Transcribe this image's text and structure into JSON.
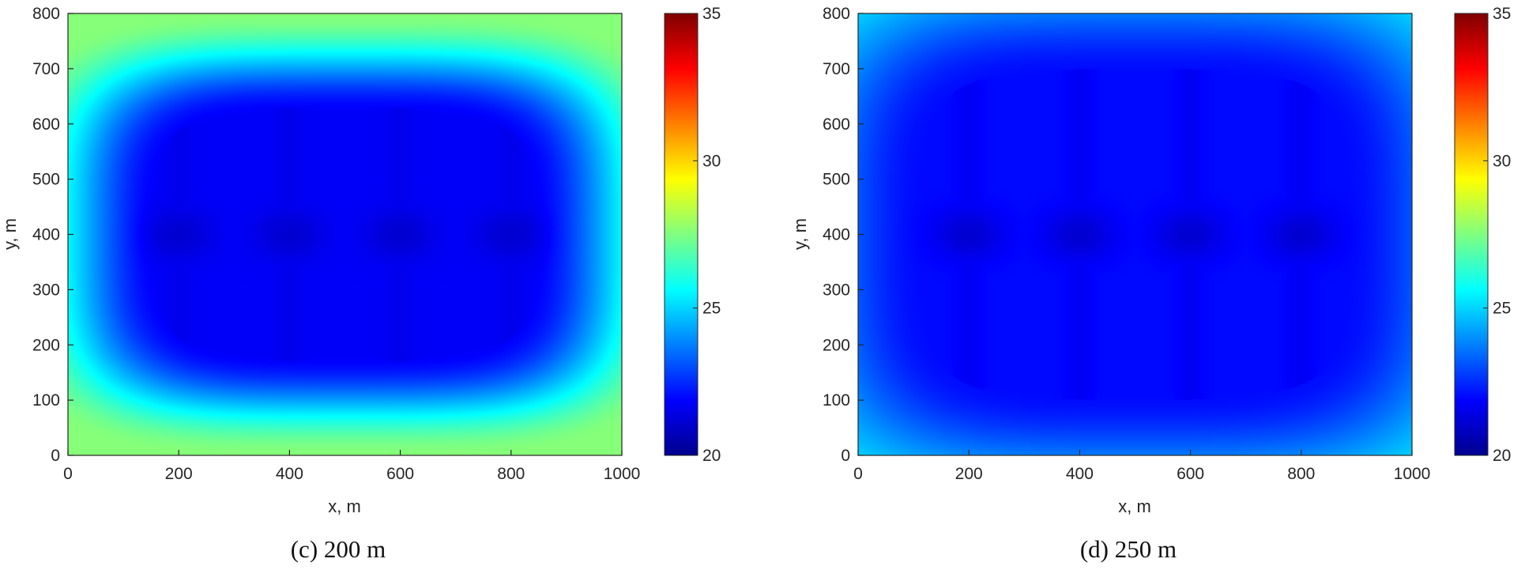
{
  "chart_data": [
    {
      "type": "heatmap",
      "caption": "(c) 200 m",
      "xlabel": "x, m",
      "ylabel": "y, m",
      "xlim": [
        0,
        1000
      ],
      "ylim": [
        0,
        800
      ],
      "xticks": [
        "0",
        "200",
        "400",
        "600",
        "800",
        "1000"
      ],
      "yticks": [
        "0",
        "100",
        "200",
        "300",
        "400",
        "500",
        "600",
        "700",
        "800"
      ],
      "colorbar": {
        "min": 20,
        "max": 35,
        "ticks": [
          "20",
          "25",
          "30",
          "35"
        ],
        "colormap": "jet"
      },
      "anchor_points": [
        [
          200,
          400
        ],
        [
          400,
          400
        ],
        [
          600,
          400
        ],
        [
          800,
          400
        ]
      ],
      "value_range": [
        21.2,
        27.6
      ],
      "corner_value": 27.6,
      "plateau_value": 21.8,
      "plateau_extent": {
        "x": [
          150,
          850
        ],
        "y": [
          170,
          630
        ]
      }
    },
    {
      "type": "heatmap",
      "caption": "(d) 250 m",
      "xlabel": "x, m",
      "ylabel": "y, m",
      "xlim": [
        0,
        1000
      ],
      "ylim": [
        0,
        800
      ],
      "xticks": [
        "0",
        "200",
        "400",
        "600",
        "800",
        "1000"
      ],
      "yticks": [
        "0",
        "100",
        "200",
        "300",
        "400",
        "500",
        "600",
        "700",
        "800"
      ],
      "colorbar": {
        "min": 20,
        "max": 35,
        "ticks": [
          "20",
          "25",
          "30",
          "35"
        ],
        "colormap": "jet"
      },
      "anchor_points": [
        [
          200,
          400
        ],
        [
          400,
          400
        ],
        [
          600,
          400
        ],
        [
          800,
          400
        ]
      ],
      "value_range": [
        21.2,
        25.5
      ],
      "corner_value": 25.5,
      "plateau_value": 22.0,
      "plateau_extent": {
        "x": [
          100,
          900
        ],
        "y": [
          100,
          700
        ]
      }
    }
  ]
}
